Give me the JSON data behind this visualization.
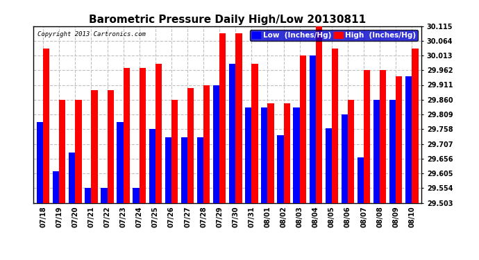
{
  "title": "Barometric Pressure Daily High/Low 20130811",
  "copyright": "Copyright 2013 Cartronics.com",
  "legend_low": "Low  (Inches/Hg)",
  "legend_high": "High  (Inches/Hg)",
  "dates": [
    "07/18",
    "07/19",
    "07/20",
    "07/21",
    "07/22",
    "07/23",
    "07/24",
    "07/25",
    "07/26",
    "07/27",
    "07/28",
    "07/29",
    "07/30",
    "07/31",
    "08/01",
    "08/02",
    "08/03",
    "08/04",
    "08/05",
    "08/06",
    "08/07",
    "08/08",
    "08/09",
    "08/10"
  ],
  "low_values": [
    29.782,
    29.612,
    29.676,
    29.554,
    29.554,
    29.782,
    29.554,
    29.758,
    29.73,
    29.73,
    29.73,
    29.911,
    29.985,
    29.834,
    29.834,
    29.737,
    29.834,
    30.013,
    29.762,
    29.808,
    29.66,
    29.86,
    29.86,
    29.942
  ],
  "high_values": [
    30.038,
    29.86,
    29.86,
    29.893,
    29.893,
    29.97,
    29.97,
    29.985,
    29.86,
    29.9,
    29.911,
    30.089,
    30.089,
    29.985,
    29.847,
    29.847,
    30.013,
    30.115,
    30.038,
    29.86,
    29.962,
    29.962,
    29.94,
    30.038
  ],
  "ylim_min": 29.503,
  "ylim_max": 30.115,
  "yticks": [
    29.503,
    29.554,
    29.605,
    29.656,
    29.707,
    29.758,
    29.809,
    29.86,
    29.911,
    29.962,
    30.013,
    30.064,
    30.115
  ],
  "low_color": "#0000ff",
  "high_color": "#ff0000",
  "bg_color": "#ffffff",
  "grid_color": "#c0c0c0",
  "bar_width": 0.4,
  "title_fontsize": 11,
  "tick_fontsize": 7,
  "legend_fontsize": 7.5,
  "copyright_fontsize": 6.5
}
